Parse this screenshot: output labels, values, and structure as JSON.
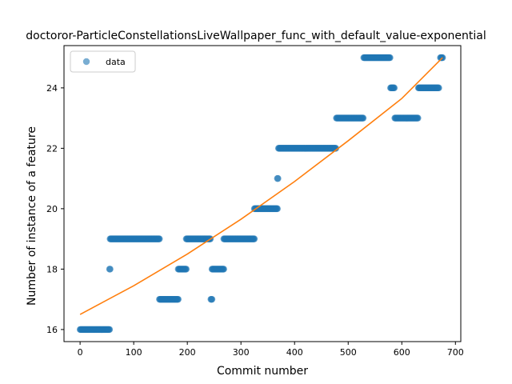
{
  "chart_data": {
    "type": "scatter",
    "title": "doctoror-ParticleConstellationsLiveWallpaper_func_with_default_value-exponential",
    "xlabel": "Commit number",
    "ylabel": "Number of instance of a feature",
    "xlim": [
      -30,
      710
    ],
    "ylim": [
      15.6,
      25.4
    ],
    "xticks": [
      0,
      100,
      200,
      300,
      400,
      500,
      600,
      700
    ],
    "yticks": [
      16,
      18,
      20,
      22,
      24
    ],
    "grid": false,
    "legend": {
      "placement": "top-left",
      "entries": [
        "data"
      ]
    },
    "colors": {
      "scatter": "#1f77b4",
      "fit": "#ff7f0e"
    },
    "series": [
      {
        "name": "data",
        "kind": "scatter",
        "segments": [
          {
            "x_start": 0,
            "x_end": 55,
            "y": 16
          },
          {
            "x_start": 55,
            "x_end": 56,
            "y": 18
          },
          {
            "x_start": 56,
            "x_end": 148,
            "y": 19
          },
          {
            "x_start": 148,
            "x_end": 183,
            "y": 17
          },
          {
            "x_start": 183,
            "x_end": 198,
            "y": 18
          },
          {
            "x_start": 198,
            "x_end": 243,
            "y": 19
          },
          {
            "x_start": 244,
            "x_end": 246,
            "y": 17
          },
          {
            "x_start": 246,
            "x_end": 268,
            "y": 18
          },
          {
            "x_start": 268,
            "x_end": 325,
            "y": 19
          },
          {
            "x_start": 325,
            "x_end": 368,
            "y": 20
          },
          {
            "x_start": 368,
            "x_end": 369,
            "y": 21
          },
          {
            "x_start": 370,
            "x_end": 477,
            "y": 22
          },
          {
            "x_start": 478,
            "x_end": 528,
            "y": 23
          },
          {
            "x_start": 529,
            "x_end": 578,
            "y": 25
          },
          {
            "x_start": 579,
            "x_end": 586,
            "y": 24
          },
          {
            "x_start": 587,
            "x_end": 630,
            "y": 23
          },
          {
            "x_start": 631,
            "x_end": 669,
            "y": 24
          },
          {
            "x_start": 672,
            "x_end": 676,
            "y": 25
          }
        ]
      },
      {
        "kind": "line",
        "points": [
          [
            0,
            16.5
          ],
          [
            100,
            17.45
          ],
          [
            200,
            18.5
          ],
          [
            300,
            19.65
          ],
          [
            400,
            20.9
          ],
          [
            500,
            22.25
          ],
          [
            600,
            23.65
          ],
          [
            676,
            25.0
          ]
        ]
      }
    ]
  }
}
